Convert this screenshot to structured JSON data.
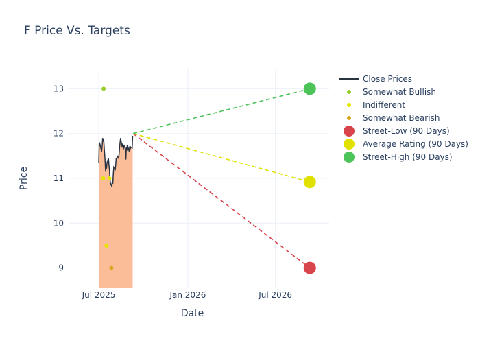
{
  "chart_data": {
    "type": "line",
    "title": "F Price Vs. Targets",
    "xlabel": "Date",
    "ylabel": "Price",
    "x_axis": {
      "type": "date",
      "range": [
        "2025-05-01",
        "2026-10-20"
      ],
      "ticks": [
        {
          "date": "2025-07-01",
          "label": "Jul 2025"
        },
        {
          "date": "2026-01-01",
          "label": "Jan 2026"
        },
        {
          "date": "2026-07-01",
          "label": "Jul 2026"
        }
      ]
    },
    "y_axis": {
      "range": [
        8.55,
        13.45
      ],
      "ticks": [
        9,
        10,
        11,
        12,
        13
      ]
    },
    "grid": true,
    "legend_position": "right",
    "colors": {
      "close": "#2a3441",
      "fill": "#fbbd97",
      "somewhat_bullish": "#9acd32",
      "indifferent": "#e5e500",
      "somewhat_bearish": "#daa520",
      "street_low": "#d9434b",
      "average": "#e1e100",
      "street_high": "#4cc45a"
    },
    "series": [
      {
        "name": "Close Prices",
        "kind": "line",
        "points": [
          [
            "2025-07-01",
            11.35
          ],
          [
            "2025-07-02",
            11.8
          ],
          [
            "2025-07-03",
            11.78
          ],
          [
            "2025-07-07",
            11.6
          ],
          [
            "2025-07-08",
            11.72
          ],
          [
            "2025-07-09",
            11.9
          ],
          [
            "2025-07-10",
            11.82
          ],
          [
            "2025-07-11",
            11.88
          ],
          [
            "2025-07-14",
            11.4
          ],
          [
            "2025-07-15",
            11.15
          ],
          [
            "2025-07-16",
            11.25
          ],
          [
            "2025-07-17",
            11.22
          ],
          [
            "2025-07-18",
            11.35
          ],
          [
            "2025-07-21",
            11.45
          ],
          [
            "2025-07-22",
            11.3
          ],
          [
            "2025-07-23",
            11.2
          ],
          [
            "2025-07-24",
            11.0
          ],
          [
            "2025-07-25",
            10.9
          ],
          [
            "2025-07-28",
            10.82
          ],
          [
            "2025-07-29",
            10.95
          ],
          [
            "2025-07-30",
            10.88
          ],
          [
            "2025-07-31",
            11.1
          ],
          [
            "2025-08-01",
            11.25
          ],
          [
            "2025-08-04",
            11.2
          ],
          [
            "2025-08-05",
            11.3
          ],
          [
            "2025-08-06",
            11.45
          ],
          [
            "2025-08-07",
            11.42
          ],
          [
            "2025-08-08",
            11.5
          ],
          [
            "2025-08-11",
            11.45
          ],
          [
            "2025-08-12",
            11.55
          ],
          [
            "2025-08-13",
            11.7
          ],
          [
            "2025-08-14",
            11.8
          ],
          [
            "2025-08-15",
            11.9
          ],
          [
            "2025-08-18",
            11.72
          ],
          [
            "2025-08-19",
            11.75
          ],
          [
            "2025-08-20",
            11.7
          ],
          [
            "2025-08-21",
            11.65
          ],
          [
            "2025-08-22",
            11.75
          ],
          [
            "2025-08-25",
            11.65
          ],
          [
            "2025-08-26",
            11.42
          ],
          [
            "2025-08-27",
            11.7
          ],
          [
            "2025-08-28",
            11.62
          ],
          [
            "2025-08-29",
            11.75
          ],
          [
            "2025-09-02",
            11.6
          ],
          [
            "2025-09-03",
            11.72
          ],
          [
            "2025-09-04",
            11.65
          ],
          [
            "2025-09-05",
            11.7
          ],
          [
            "2025-09-08",
            11.68
          ],
          [
            "2025-09-09",
            11.95
          ]
        ]
      },
      {
        "name": "Somewhat Bullish",
        "kind": "markers",
        "points": [
          [
            "2025-07-11",
            13.0
          ]
        ]
      },
      {
        "name": "Indifferent",
        "kind": "markers",
        "points": [
          [
            "2025-07-10",
            11.0
          ],
          [
            "2025-07-17",
            9.5
          ],
          [
            "2025-07-23",
            11.0
          ]
        ]
      },
      {
        "name": "Somewhat Bearish",
        "kind": "markers",
        "points": [
          [
            "2025-07-27",
            9.0
          ]
        ]
      },
      {
        "name": "Street-Low (90 Days)",
        "kind": "target",
        "from": [
          "2025-09-10",
          12.0
        ],
        "to": [
          "2026-09-10",
          9.0
        ]
      },
      {
        "name": "Average Rating (90 Days)",
        "kind": "target",
        "from": [
          "2025-09-10",
          12.0
        ],
        "to": [
          "2026-09-10",
          10.92
        ]
      },
      {
        "name": "Street-High (90 Days)",
        "kind": "target",
        "from": [
          "2025-09-10",
          12.0
        ],
        "to": [
          "2026-09-10",
          13.0
        ]
      }
    ]
  }
}
